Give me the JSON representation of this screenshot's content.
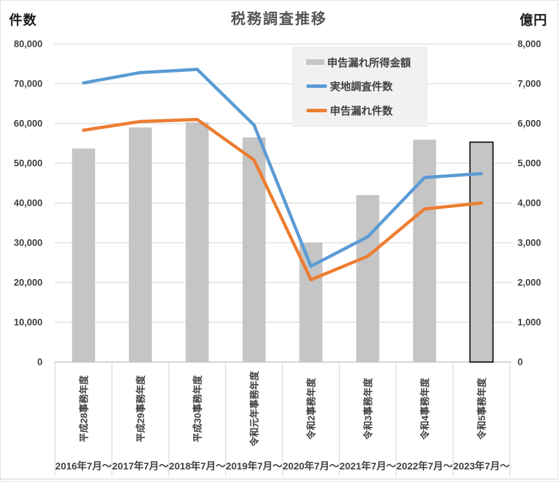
{
  "page": {
    "title": "税務調査推移",
    "left_axis_unit": "件数",
    "right_axis_unit": "億円"
  },
  "legend": {
    "items": [
      {
        "label": "申告漏れ所得金額",
        "type": "bar",
        "color": "#c5c5c5"
      },
      {
        "label": "実地調査件数",
        "type": "line",
        "color": "#5b9bd5"
      },
      {
        "label": "申告漏れ件数",
        "type": "line",
        "color": "#ed7d31"
      }
    ]
  },
  "chart_data": {
    "type": "combo-bar-line",
    "title": "税務調査推移",
    "grid": true,
    "legend_position": "top-right-inset",
    "categories": [
      "平成28事務年度",
      "平成29事務年度",
      "平成30事務年度",
      "令和元年事務年度",
      "令和2事務年度",
      "令和3事務年度",
      "令和4事務年度",
      "令和5事務年度"
    ],
    "category_sublabels": [
      "2016年7月～",
      "2017年7月～",
      "2018年7月～",
      "2019年7月～",
      "2020年7月～",
      "2021年7月～",
      "2022年7月～",
      "2023年7月～"
    ],
    "series": [
      {
        "name": "申告漏れ所得金額",
        "type": "bar",
        "axis": "right",
        "unit": "億円",
        "color": "#c5c5c5",
        "values": [
          5370,
          5900,
          6030,
          5650,
          3000,
          4200,
          5590,
          5530
        ],
        "highlight_last_bar": true,
        "highlight_color": "#262626"
      },
      {
        "name": "実地調査件数",
        "type": "line",
        "axis": "left",
        "unit": "件",
        "color": "#5b9bd5",
        "values": [
          70200,
          72800,
          73600,
          59600,
          24100,
          31500,
          46400,
          47400
        ]
      },
      {
        "name": "申告漏れ件数",
        "type": "line",
        "axis": "left",
        "unit": "件",
        "color": "#ed7d31",
        "values": [
          58300,
          60500,
          61000,
          50800,
          20700,
          26600,
          38500,
          40000
        ]
      }
    ],
    "left_axis": {
      "label": "件数",
      "min": 0,
      "max": 80000,
      "step": 10000,
      "ticks": [
        "0",
        "10,000",
        "20,000",
        "30,000",
        "40,000",
        "50,000",
        "60,000",
        "70,000",
        "80,000"
      ]
    },
    "right_axis": {
      "label": "億円",
      "min": 0,
      "max": 8000,
      "step": 1000,
      "ticks": [
        "0",
        "1,000",
        "2,000",
        "3,000",
        "4,000",
        "5,000",
        "6,000",
        "7,000",
        "8,000"
      ]
    },
    "colors": {
      "gridline": "#d9d9d9",
      "axis_line": "#c9c9c9",
      "tick_text": "#404040",
      "category_text": "#404040",
      "bottom_rule": "#dfe2e8"
    }
  }
}
